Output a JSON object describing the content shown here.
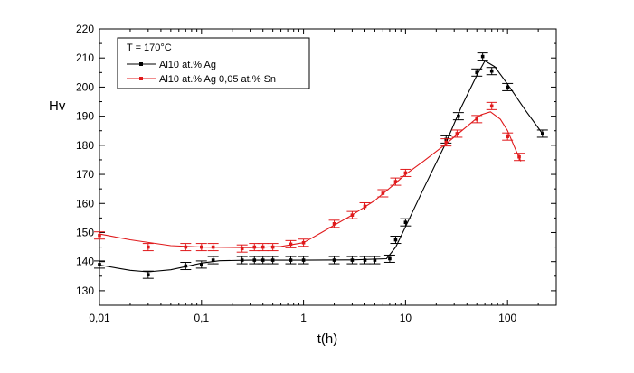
{
  "chart_data": {
    "type": "scatter",
    "title": "",
    "xlabel": "t(h)",
    "ylabel": "Hv",
    "x_scale": "log",
    "xlim": [
      0.01,
      300
    ],
    "ylim": [
      125,
      220
    ],
    "x_ticks": [
      0.01,
      0.1,
      1,
      10,
      100
    ],
    "x_tick_labels": [
      "0,01",
      "0,1",
      "1",
      "10",
      "100"
    ],
    "y_ticks": [
      130,
      140,
      150,
      160,
      170,
      180,
      190,
      200,
      210,
      220
    ],
    "y_tick_labels": [
      "130",
      "140",
      "150",
      "160",
      "170",
      "180",
      "190",
      "200",
      "210",
      "220"
    ],
    "grid": false,
    "legend_title": "T = 170°C",
    "legend_position": "top-left",
    "series": [
      {
        "name": "Al10 at.% Ag",
        "color": "#000000",
        "points": [
          [
            0.01,
            139
          ],
          [
            0.03,
            135.5
          ],
          [
            0.07,
            138.5
          ],
          [
            0.1,
            139
          ],
          [
            0.13,
            140.5
          ],
          [
            0.25,
            140.5
          ],
          [
            0.33,
            140.5
          ],
          [
            0.4,
            140.5
          ],
          [
            0.5,
            140.5
          ],
          [
            0.75,
            140.5
          ],
          [
            1,
            140.5
          ],
          [
            2,
            140.5
          ],
          [
            3,
            140.5
          ],
          [
            4,
            140.5
          ],
          [
            5,
            140.5
          ],
          [
            7,
            141
          ],
          [
            8,
            147.5
          ],
          [
            10,
            153.5
          ],
          [
            25,
            182
          ],
          [
            33,
            190
          ],
          [
            50,
            205
          ],
          [
            57,
            210.5
          ],
          [
            70,
            205.5
          ],
          [
            100,
            200
          ],
          [
            220,
            184
          ]
        ],
        "fit": [
          [
            0.01,
            138.8
          ],
          [
            0.02,
            137
          ],
          [
            0.03,
            136.5
          ],
          [
            0.05,
            137.2
          ],
          [
            0.07,
            138.3
          ],
          [
            0.1,
            139.5
          ],
          [
            0.15,
            140.3
          ],
          [
            0.3,
            140.5
          ],
          [
            1,
            140.5
          ],
          [
            3,
            140.6
          ],
          [
            6.5,
            141
          ],
          [
            8,
            145
          ],
          [
            10,
            152
          ],
          [
            15,
            165
          ],
          [
            25,
            181
          ],
          [
            35,
            193
          ],
          [
            50,
            204
          ],
          [
            60,
            209
          ],
          [
            75,
            207
          ],
          [
            100,
            201
          ],
          [
            150,
            192
          ],
          [
            220,
            184
          ]
        ]
      },
      {
        "name": "Al10 at.% Ag 0,05 at.% Sn",
        "color": "#e0191b",
        "points": [
          [
            0.01,
            149
          ],
          [
            0.03,
            145
          ],
          [
            0.07,
            145
          ],
          [
            0.1,
            145
          ],
          [
            0.13,
            145
          ],
          [
            0.25,
            144.5
          ],
          [
            0.33,
            145
          ],
          [
            0.4,
            145
          ],
          [
            0.5,
            145
          ],
          [
            0.75,
            146
          ],
          [
            1,
            146.5
          ],
          [
            2,
            153
          ],
          [
            3,
            156
          ],
          [
            4,
            159
          ],
          [
            6,
            163.5
          ],
          [
            8,
            167.5
          ],
          [
            10,
            170.5
          ],
          [
            25,
            181
          ],
          [
            32,
            184
          ],
          [
            50,
            189
          ],
          [
            70,
            193.5
          ],
          [
            100,
            183
          ],
          [
            130,
            176
          ]
        ],
        "fit": [
          [
            0.01,
            149.5
          ],
          [
            0.02,
            147.5
          ],
          [
            0.05,
            145.5
          ],
          [
            0.1,
            145
          ],
          [
            0.3,
            144.8
          ],
          [
            0.6,
            145.2
          ],
          [
            1,
            146.5
          ],
          [
            1.5,
            150
          ],
          [
            2,
            152.5
          ],
          [
            3,
            156
          ],
          [
            5,
            161
          ],
          [
            8,
            167
          ],
          [
            10,
            170
          ],
          [
            15,
            174.5
          ],
          [
            25,
            180.5
          ],
          [
            40,
            186.5
          ],
          [
            55,
            190.5
          ],
          [
            68,
            191.5
          ],
          [
            85,
            189
          ],
          [
            100,
            185
          ],
          [
            120,
            178.5
          ],
          [
            135,
            174.5
          ]
        ]
      }
    ]
  }
}
